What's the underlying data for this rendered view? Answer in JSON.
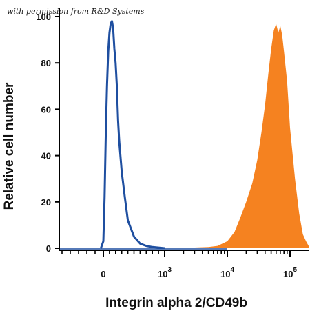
{
  "watermark": "with permission from R&D Systems",
  "chart_data": {
    "type": "area",
    "title": "",
    "xlabel": "Integrin alpha 2/CD49b",
    "ylabel": "Relative cell number",
    "xscale": "biexponential",
    "xlim": [
      -600,
      200000
    ],
    "ylim": [
      0,
      100
    ],
    "x_ticks": [
      {
        "value": 0,
        "base": "0",
        "exp": ""
      },
      {
        "value": 1000,
        "base": "10",
        "exp": "3"
      },
      {
        "value": 10000,
        "base": "10",
        "exp": "4"
      },
      {
        "value": 100000,
        "base": "10",
        "exp": "5"
      }
    ],
    "y_ticks": [
      0,
      20,
      40,
      60,
      80,
      100
    ],
    "grid": false,
    "legend": "none",
    "series": [
      {
        "style": "line",
        "color": "#1f4fa0",
        "x": [
          -30,
          0,
          20,
          40,
          60,
          80,
          100,
          120,
          140,
          160,
          180,
          200,
          220,
          240,
          260,
          300,
          350,
          400,
          500,
          600,
          700,
          800,
          1000
        ],
        "y": [
          0,
          3,
          22,
          50,
          70,
          85,
          93,
          97,
          98,
          95,
          86,
          80,
          70,
          55,
          46,
          33,
          22,
          12,
          5,
          2,
          1,
          0.5,
          0
        ]
      },
      {
        "style": "filled",
        "color": "#f58220",
        "x": [
          -600,
          3000,
          5000,
          7000,
          10000,
          13000,
          16000,
          20000,
          25000,
          30000,
          35000,
          40000,
          45000,
          50000,
          55000,
          60000,
          65000,
          70000,
          75000,
          80000,
          90000,
          100000,
          120000,
          140000,
          160000,
          180000,
          200000
        ],
        "y": [
          0.3,
          0.3,
          0.5,
          1,
          3,
          7,
          13,
          20,
          28,
          38,
          50,
          62,
          75,
          86,
          94,
          97,
          93,
          96,
          92,
          85,
          72,
          52,
          30,
          15,
          6,
          3,
          1
        ]
      }
    ]
  }
}
